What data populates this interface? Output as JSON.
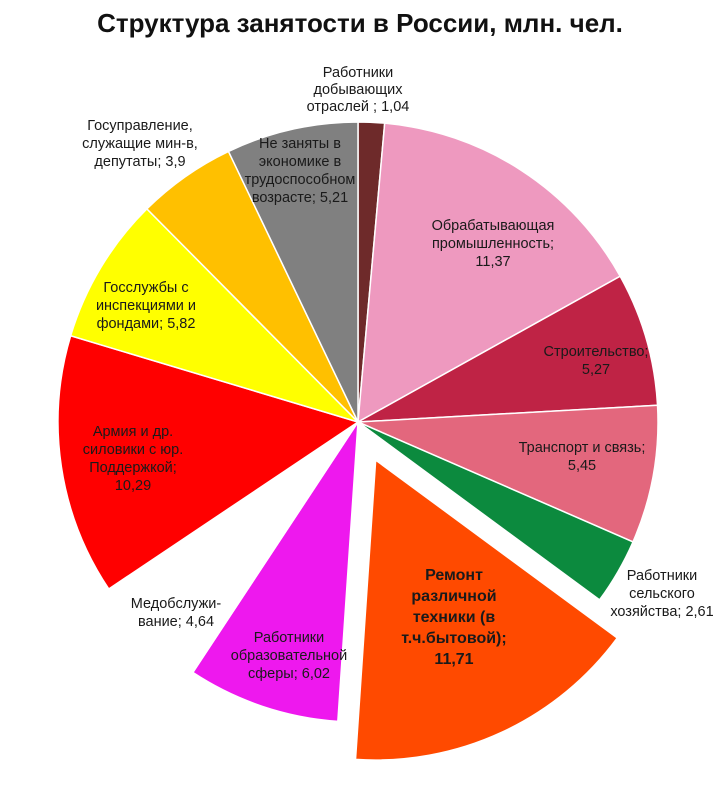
{
  "chart_data": {
    "type": "pie",
    "title": "Структура занятости в России, млн. чел.",
    "slices": [
      {
        "label": "Работники добывающих отраслей",
        "value": 1.04,
        "value_text": "1,04",
        "color": "#6e2a2a"
      },
      {
        "label": "Обрабатывающая промышленность",
        "value": 11.37,
        "value_text": "11,37",
        "color": "#ee99bf"
      },
      {
        "label": "Строительство",
        "value": 5.27,
        "value_text": "5,27",
        "color": "#bf2345"
      },
      {
        "label": "Транспорт и связь",
        "value": 5.45,
        "value_text": "5,45",
        "color": "#e3677d"
      },
      {
        "label": "Работники сельского хозяйства",
        "value": 2.61,
        "value_text": "2,61",
        "color": "#0c8a3e"
      },
      {
        "label": "Ремонт различной техники (в т.ч.бытовой)",
        "value": 11.71,
        "value_text": "11,71",
        "color": "#ff4a00",
        "exploded": true
      },
      {
        "label": "Работники образовательной сферы",
        "value": 6.02,
        "value_text": "6,02",
        "color": "#ee18ee"
      },
      {
        "label": "Медобслуживание",
        "value": 4.64,
        "value_text": "4,64",
        "color": "#ffffff"
      },
      {
        "label": "Армия и др. силовики с юр. Поддержкой",
        "value": 10.29,
        "value_text": "10,29",
        "color": "#ff0000"
      },
      {
        "label": "Госслужбы с инспекциями и фондами",
        "value": 5.82,
        "value_text": "5,82",
        "color": "#ffff00"
      },
      {
        "label": "Госуправление, служащие мин-в, депутаты",
        "value": 3.9,
        "value_text": "3,9",
        "color": "#ffc000"
      },
      {
        "label": "Не заняты в экономике в трудоспособном возрасте",
        "value": 5.21,
        "value_text": "5,21",
        "color": "#808080"
      }
    ],
    "label_lines": [
      [
        "Работники",
        "добывающих",
        "отраслей ; 1,04"
      ],
      [
        "Обрабатывающая",
        "промышленность;",
        "11,37"
      ],
      [
        "Строительство;",
        "5,27"
      ],
      [
        "Транспорт и связь;",
        "5,45"
      ],
      [
        "Работники",
        "сельского",
        "хозяйства; 2,61"
      ],
      [
        "Ремонт",
        "различной",
        "техники (в",
        "т.ч.бытовой);",
        "11,71"
      ],
      [
        "Работники",
        "образовательной",
        "сферы; 6,02"
      ],
      [
        "Медобслужи-",
        "вание; 4,64"
      ],
      [
        "Армия и др.",
        "силовики с юр.",
        "Поддержкой;",
        "10,29"
      ],
      [
        "Госслужбы с",
        "инспекциями и",
        "фондами; 5,82"
      ],
      [
        "Госуправление,",
        "служащие мин-в,",
        "депутаты; 3,9"
      ],
      [
        "Не заняты в",
        "экономике в",
        "трудоспособном",
        "возрасте; 5,21"
      ]
    ],
    "start_angle_deg": 0,
    "direction": "clockwise",
    "legend": "none"
  }
}
